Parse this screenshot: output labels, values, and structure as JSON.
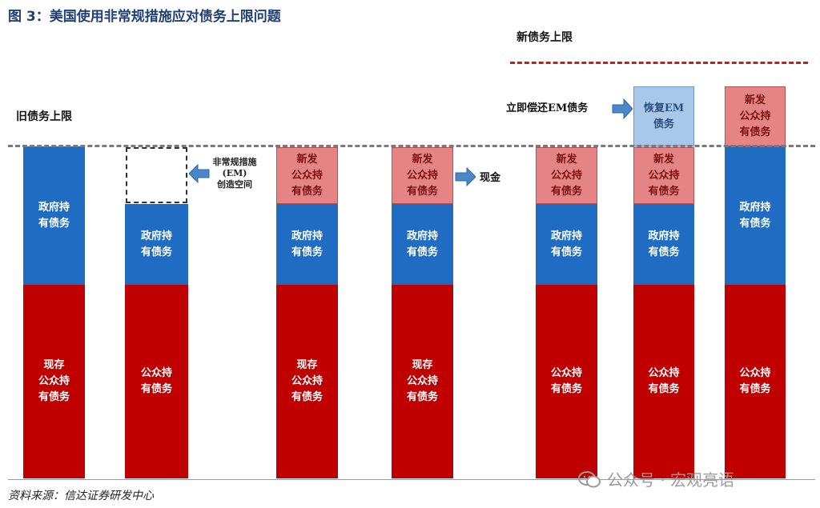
{
  "title": "图 3：美国使用非常规措施应对债务上限问题",
  "labels": {
    "old_ceiling": "旧债务上限",
    "new_ceiling": "新债务上限",
    "em_note": "非常规措施\n(EM)\n创造空间",
    "cash": "现金",
    "repay_em": "立即偿还EM债务"
  },
  "bars": [
    {
      "segments": [
        {
          "kind": "blue",
          "label": "政府持\n有债务"
        },
        {
          "kind": "red",
          "label": "现存\n公众持\n有债务"
        }
      ]
    },
    {
      "segments": [
        {
          "kind": "empty-dashed",
          "label": ""
        },
        {
          "kind": "blue",
          "label": "政府持\n有债务"
        },
        {
          "kind": "red",
          "label": "公众持\n有债务"
        }
      ]
    },
    {
      "segments": [
        {
          "kind": "pink",
          "label": "新发\n公众持\n有债务"
        },
        {
          "kind": "blue",
          "label": "政府持\n有债务"
        },
        {
          "kind": "red",
          "label": "现存\n公众持\n有债务"
        }
      ]
    },
    {
      "segments": [
        {
          "kind": "pink",
          "label": "新发\n公众持\n有债务"
        },
        {
          "kind": "blue",
          "label": "政府持\n有债务"
        },
        {
          "kind": "red",
          "label": "现存\n公众持\n有债务"
        }
      ]
    },
    {
      "segments": [
        {
          "kind": "pink",
          "label": "新发\n公众持\n有债务"
        },
        {
          "kind": "blue",
          "label": "政府持\n有债务"
        },
        {
          "kind": "red",
          "label": "公众持\n有债务"
        }
      ]
    },
    {
      "segments": [
        {
          "kind": "lightblue",
          "label": "恢复EM\n债务"
        },
        {
          "kind": "pink",
          "label": "新发\n公众持\n有债务"
        },
        {
          "kind": "blue",
          "label": "政府持\n有债务"
        },
        {
          "kind": "red",
          "label": "公众持\n有债务"
        }
      ]
    },
    {
      "segments": [
        {
          "kind": "pink",
          "label": "新发\n公众持\n有债务"
        },
        {
          "kind": "blue",
          "label": "政府持\n有债务"
        },
        {
          "kind": "red",
          "label": "公众持\n有债务"
        }
      ]
    }
  ],
  "source": "资料来源：信达证券研发中心",
  "watermark": "公众号 · 宏观亮语",
  "colors": {
    "title": "#1f3f77",
    "existing_public_debt": "#c00000",
    "government_held_debt": "#1f6cc2",
    "new_public_debt": "#e58484",
    "restored_em_debt": "#a9c7e8",
    "arrow": "#4a86c8",
    "new_ceiling_line": "#d01a1a",
    "old_ceiling_line": "#7a7a7a"
  }
}
